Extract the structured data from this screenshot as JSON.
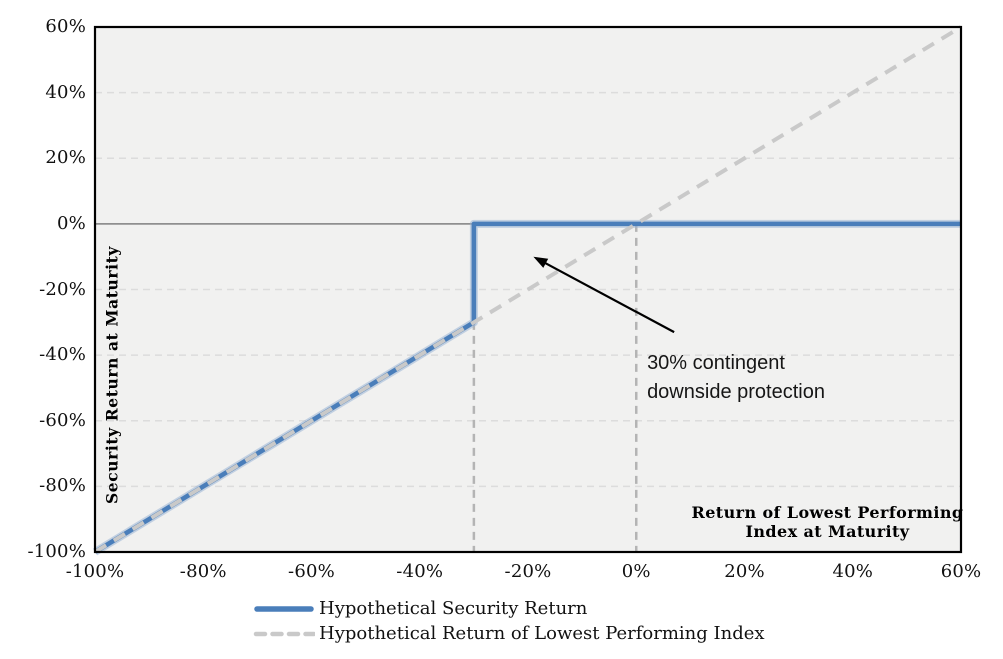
{
  "chart_data": {
    "type": "line",
    "title": "",
    "xlabel": "Return of Lowest Performing Index at Maturity",
    "ylabel": "Security Return at Maturity",
    "xlim": [
      -100,
      60
    ],
    "ylim": [
      -100,
      60
    ],
    "x_ticks": [
      -100,
      -80,
      -60,
      -40,
      -20,
      0,
      20,
      40,
      60
    ],
    "y_ticks": [
      -100,
      -80,
      -60,
      -40,
      -20,
      0,
      20,
      40,
      60
    ],
    "tick_suffix": "%",
    "grid": {
      "horizontal": "dashed",
      "vertical": "off",
      "zero_line": "solid"
    },
    "legend_position": "bottom",
    "series": [
      {
        "name": "Hypothetical Security Return",
        "style": "solid",
        "points": [
          [
            -100,
            -100
          ],
          [
            -30,
            -30
          ],
          [
            -30,
            0
          ],
          [
            60,
            0
          ]
        ]
      },
      {
        "name": "Hypothetical Return of Lowest Performing Index",
        "style": "dashed",
        "points": [
          [
            -100,
            -100
          ],
          [
            60,
            60
          ]
        ]
      }
    ],
    "drop_lines": [
      {
        "x": -30,
        "y_from": 0,
        "y_to": -100
      },
      {
        "x": 0,
        "y_from": 0,
        "y_to": -100
      }
    ],
    "annotation": {
      "text": "30% contingent downside protection",
      "text_pos": [
        2,
        -38
      ],
      "arrow_from": [
        7,
        -33
      ],
      "arrow_to": [
        -19,
        -10
      ]
    }
  },
  "axes": {
    "y_title": "Security Return at Maturity",
    "x_title_line1": "Return of Lowest Performing",
    "x_title_line2": "Index at Maturity"
  },
  "annotation": {
    "line1": "30% contingent",
    "line2": "downside protection"
  },
  "legend": {
    "item1": "Hypothetical Security Return",
    "item2": "Hypothetical Return of Lowest Performing Index"
  },
  "colors": {
    "security_line": "#4a7eba",
    "security_halo": "#9bb5d6",
    "index_line": "#c9c9c9",
    "plot_bg": "#f1f1f0",
    "plot_border": "#000000",
    "gridline": "#dcdcdc",
    "zero_line": "#8f8f8f",
    "drop_line": "#b4b4b4",
    "arrow": "#000000"
  }
}
